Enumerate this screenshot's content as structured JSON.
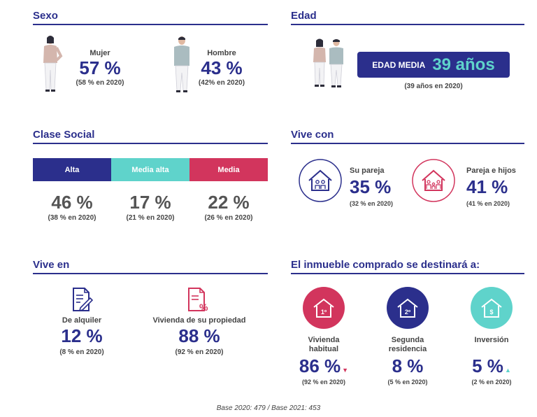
{
  "sexo": {
    "title": "Sexo",
    "mujer": {
      "label": "Mujer",
      "value": "57 %",
      "prev": "(58 % en 2020)"
    },
    "hombre": {
      "label": "Hombre",
      "value": "43 %",
      "prev": "(42% en 2020)"
    }
  },
  "edad": {
    "title": "Edad",
    "badge_label": "EDAD MEDIA",
    "badge_value": "39 años",
    "prev": "(39 años en 2020)"
  },
  "clase_social": {
    "title": "Clase Social",
    "items": [
      {
        "label": "Alta",
        "value": "46 %",
        "prev": "(38 % en 2020)",
        "color": "#2b2f8c"
      },
      {
        "label": "Media alta",
        "value": "17 %",
        "prev": "(21 % en 2020)",
        "color": "#5fd3cb"
      },
      {
        "label": "Media",
        "value": "22 %",
        "prev": "(26 % en 2020)",
        "color": "#d2355d"
      }
    ]
  },
  "vive_con": {
    "title": "Vive con",
    "items": [
      {
        "label": "Su pareja",
        "value": "35 %",
        "prev": "(32 % en 2020)",
        "color": "#2b2f8c"
      },
      {
        "label": "Pareja e hijos",
        "value": "41 %",
        "prev": "(41 % en 2020)",
        "color": "#d2355d"
      }
    ]
  },
  "vive_en": {
    "title": "Vive en",
    "items": [
      {
        "label": "De alquiler",
        "value": "12 %",
        "prev": "(8 % en 2020)",
        "color": "#2b2f8c"
      },
      {
        "label": "Vivienda de su propiedad",
        "value": "88 %",
        "prev": "(92 % en 2020)",
        "color": "#d2355d"
      }
    ]
  },
  "inmueble": {
    "title": "El inmueble comprado se destinará a:",
    "items": [
      {
        "label_line1": "Vivienda",
        "label_line2": "habitual",
        "icon_text": "1º",
        "value": "86 %",
        "prev": "(92 % en 2020)",
        "color": "#d2355d"
      },
      {
        "label_line1": "Segunda",
        "label_line2": "residencia",
        "icon_text": "2º",
        "value": "8 %",
        "prev": "(5 % en 2020)",
        "color": "#2b2f8c"
      },
      {
        "label_line1": "Inversión",
        "label_line2": "",
        "icon_text": "$",
        "value": "5 %",
        "prev": "(2 % en 2020)",
        "color": "#5fd3cb"
      }
    ]
  },
  "footer": {
    "base": "Base 2020: 479 / Base 2021: 453"
  },
  "colors": {
    "navy": "#2b2f8c",
    "teal": "#5fd3cb",
    "crimson": "#d2355d"
  }
}
